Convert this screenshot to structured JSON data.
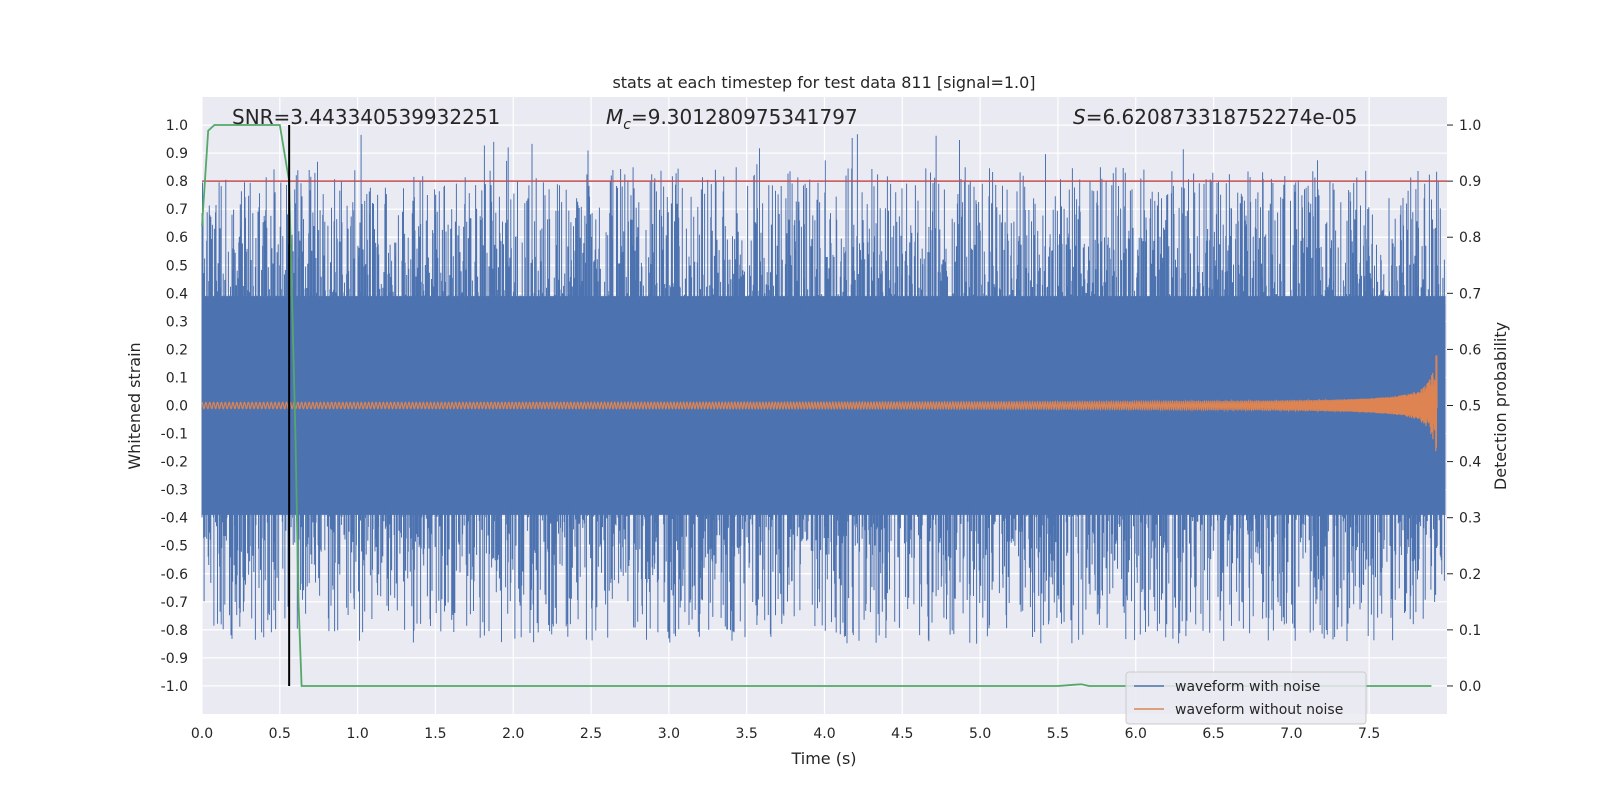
{
  "chart_data": {
    "type": "line",
    "title": "stats at each timestep for test data 811 [signal=1.0]",
    "xlabel": "Time (s)",
    "ylabel": "Whitened strain",
    "ylabel_right": "Detection probability",
    "xlim": [
      0.0,
      8.0
    ],
    "ylim": [
      -1.1,
      1.1
    ],
    "ylim_right": [
      -0.05,
      1.05
    ],
    "x_ticks": [
      0.0,
      0.5,
      1.0,
      1.5,
      2.0,
      2.5,
      3.0,
      3.5,
      4.0,
      4.5,
      5.0,
      5.5,
      6.0,
      6.5,
      7.0,
      7.5
    ],
    "x_tick_labels": [
      "0.0",
      "0.5",
      "1.0",
      "1.5",
      "2.0",
      "2.5",
      "3.0",
      "3.5",
      "4.0",
      "4.5",
      "5.0",
      "5.5",
      "6.0",
      "6.5",
      "7.0",
      "7.5"
    ],
    "y_ticks": [
      1.0,
      0.9,
      0.8,
      0.7,
      0.6,
      0.5,
      0.4,
      0.3,
      0.2,
      0.1,
      0.0,
      -0.1,
      -0.2,
      -0.3,
      -0.4,
      -0.5,
      -0.6,
      -0.7,
      -0.8,
      -0.9,
      -1.0
    ],
    "y_tick_labels": [
      "1.0",
      "0.9",
      "0.8",
      "0.7",
      "0.6",
      "0.5",
      "0.4",
      "0.3",
      "0.2",
      "0.1",
      "0.0",
      "-0.1",
      "-0.2",
      "-0.3",
      "-0.4",
      "-0.5",
      "-0.6",
      "-0.7",
      "-0.8",
      "-0.9",
      "-1.0"
    ],
    "y_right_ticks": [
      1.0,
      0.9,
      0.8,
      0.7,
      0.6,
      0.5,
      0.4,
      0.3,
      0.2,
      0.1,
      0.0
    ],
    "y_right_tick_labels": [
      "1.0",
      "0.9",
      "0.8",
      "0.7",
      "0.6",
      "0.5",
      "0.4",
      "0.3",
      "0.2",
      "0.1",
      "0.0"
    ],
    "annotations": {
      "snr": "SNR=3.443340539932251",
      "mc_symbol": "M",
      "mc_sub": "c",
      "mc_value": "=9.301280975341797",
      "s_symbol": "S",
      "s_value": "=6.620873318752274e-05"
    },
    "threshold_line": {
      "axis": "right",
      "value": 0.9,
      "color": "#c44e52"
    },
    "detection_time_line": {
      "x": 0.56,
      "color": "#000000"
    },
    "series": [
      {
        "name": "waveform with noise",
        "color": "#4c72b0",
        "description_envelope_max": 1.0,
        "description_envelope_min": -0.95
      },
      {
        "name": "waveform without noise",
        "color": "#dd8452",
        "amp_start": 0.01,
        "amp_end": 0.27,
        "merger_time": 7.94
      },
      {
        "name": "detection probability",
        "axis": "right",
        "color": "#55a868",
        "x": [
          0.0,
          0.04,
          0.08,
          0.12,
          0.2,
          0.3,
          0.4,
          0.5,
          0.56,
          0.6,
          0.62,
          0.64,
          1.0,
          2.0,
          3.0,
          4.0,
          5.0,
          5.5,
          5.6,
          5.65,
          5.7,
          5.8,
          6.0,
          7.0,
          7.9
        ],
        "y": [
          0.82,
          0.99,
          1.0,
          1.0,
          1.0,
          1.0,
          1.0,
          1.0,
          0.9,
          0.45,
          0.15,
          0.0,
          0.0,
          0.0,
          0.0,
          0.0,
          0.0,
          0.0,
          0.002,
          0.003,
          0.0,
          0.0,
          0.0,
          0.0,
          0.0
        ]
      }
    ],
    "legend": {
      "placement": "lower-right",
      "entries": [
        {
          "label": "waveform with noise",
          "color": "#4c72b0"
        },
        {
          "label": "waveform without noise",
          "color": "#dd8452"
        }
      ]
    }
  }
}
